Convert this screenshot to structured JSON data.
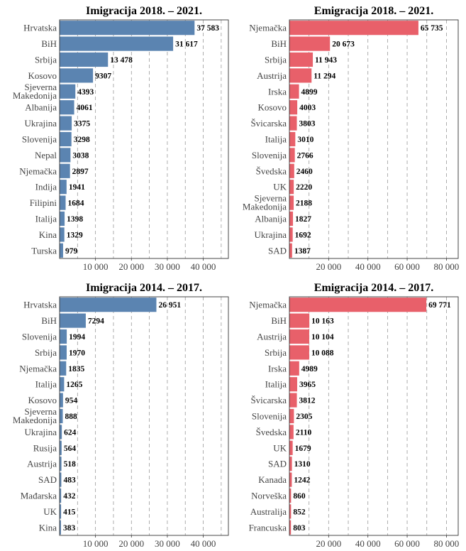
{
  "chart_data": [
    {
      "type": "bar",
      "title": "Imigracija 2018. – 2021.",
      "color": "#5b84b1",
      "categories": [
        "Hrvatska",
        "BiH",
        "Srbija",
        "Kosovo",
        "Sjeverna\nMakedonija",
        "Albanija",
        "Ukrajina",
        "Slovenija",
        "Nepal",
        "Njemačka",
        "Indija",
        "Filipini",
        "Italija",
        "Kina",
        "Turska"
      ],
      "values": [
        37583,
        31617,
        13478,
        9307,
        4393,
        4061,
        3375,
        3298,
        3038,
        2897,
        1941,
        1684,
        1398,
        1329,
        979
      ],
      "value_labels": [
        "37 583",
        "31 617",
        "13 478",
        "9307",
        "4393",
        "4061",
        "3375",
        "3298",
        "3038",
        "2897",
        "1941",
        "1684",
        "1398",
        "1329",
        "979"
      ],
      "xlim": [
        0,
        47000
      ],
      "xticks": [
        10000,
        20000,
        30000,
        40000
      ],
      "xtick_labels": [
        "10 000",
        "20 000",
        "30 000",
        "40 000"
      ],
      "grid_lines": [
        5000,
        10000,
        15000,
        20000,
        25000,
        30000,
        35000,
        40000,
        45000
      ]
    },
    {
      "type": "bar",
      "title": "Emigracija 2018. – 2021.",
      "color": "#e8606a",
      "categories": [
        "Njemačka",
        "BiH",
        "Srbija",
        "Austrija",
        "Irska",
        "Kosovo",
        "Švicarska",
        "Italija",
        "Slovenija",
        "Švedska",
        "UK",
        "Sjeverna\nMakedonija",
        "Albanija",
        "Ukrajina",
        "SAD"
      ],
      "values": [
        65735,
        20673,
        11943,
        11294,
        4899,
        4003,
        3803,
        3010,
        2766,
        2460,
        2220,
        2188,
        1827,
        1692,
        1387
      ],
      "value_labels": [
        "65 735",
        "20 673",
        "11 943",
        "11 294",
        "4899",
        "4003",
        "3803",
        "3010",
        "2766",
        "2460",
        "2220",
        "2188",
        "1827",
        "1692",
        "1387"
      ],
      "xlim": [
        0,
        86000
      ],
      "xticks": [
        20000,
        40000,
        60000,
        80000
      ],
      "xtick_labels": [
        "20 000",
        "40 000",
        "60 000",
        "80 000"
      ],
      "grid_lines": [
        10000,
        20000,
        30000,
        40000,
        50000,
        60000,
        70000,
        80000
      ]
    },
    {
      "type": "bar",
      "title": "Imigracija 2014. – 2017.",
      "color": "#5b84b1",
      "categories": [
        "Hrvatska",
        "BiH",
        "Slovenija",
        "Srbija",
        "Njemačka",
        "Italija",
        "Kosovo",
        "Sjeverna\nMakedonija",
        "Ukrajina",
        "Rusija",
        "Austrija",
        "SAD",
        "Mađarska",
        "UK",
        "Kina"
      ],
      "values": [
        26951,
        7294,
        1994,
        1970,
        1835,
        1265,
        954,
        888,
        624,
        564,
        518,
        483,
        432,
        415,
        383
      ],
      "value_labels": [
        "26 951",
        "7294",
        "1994",
        "1970",
        "1835",
        "1265",
        "954",
        "888",
        "624",
        "564",
        "518",
        "483",
        "432",
        "415",
        "383"
      ],
      "xlim": [
        0,
        47000
      ],
      "xticks": [
        10000,
        20000,
        30000,
        40000
      ],
      "xtick_labels": [
        "10 000",
        "20 000",
        "30 000",
        "40 000"
      ],
      "grid_lines": [
        5000,
        10000,
        15000,
        20000,
        25000,
        30000,
        35000,
        40000,
        45000
      ]
    },
    {
      "type": "bar",
      "title": "Emigracija 2014. – 2017.",
      "color": "#e8606a",
      "categories": [
        "Njemačka",
        "BiH",
        "Austrija",
        "Srbija",
        "Irska",
        "Italija",
        "Švicarska",
        "Slovenija",
        "Švedska",
        "UK",
        "SAD",
        "Kanada",
        "Norveška",
        "Australija",
        "Francuska"
      ],
      "values": [
        69771,
        10163,
        10104,
        10088,
        4989,
        3965,
        3812,
        2305,
        2110,
        1679,
        1310,
        1242,
        860,
        852,
        803
      ],
      "value_labels": [
        "69 771",
        "10 163",
        "10 104",
        "10 088",
        "4989",
        "3965",
        "3812",
        "2305",
        "2110",
        "1679",
        "1310",
        "1242",
        "860",
        "852",
        "803"
      ],
      "xlim": [
        0,
        86000
      ],
      "xticks": [
        20000,
        40000,
        60000,
        80000
      ],
      "xtick_labels": [
        "20 000",
        "40 000",
        "60 000",
        "80 000"
      ],
      "grid_lines": [
        10000,
        20000,
        30000,
        40000,
        50000,
        60000,
        70000,
        80000
      ]
    }
  ]
}
